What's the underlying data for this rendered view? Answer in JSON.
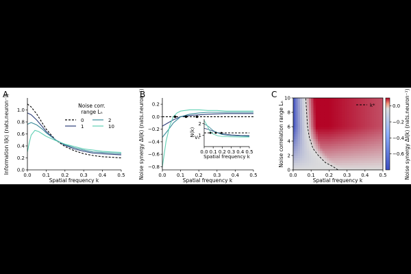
{
  "panels": {
    "A": {
      "letter": "A",
      "xlabel": "Spatial frequency k",
      "ylabel": "Information I(k) (nats.neuron⁻¹)",
      "xlim": [
        0,
        0.5
      ],
      "ylim": [
        0,
        1.2
      ],
      "xticks": [
        "0.0",
        "0.1",
        "0.2",
        "0.3",
        "0.4",
        "0.5"
      ],
      "yticks": [
        "0.0",
        "0.2",
        "0.4",
        "0.6",
        "0.8",
        "1.0"
      ],
      "legend_title_1": "Noise corr.",
      "legend_title_2": "range Lₙ",
      "legend_labels": [
        "0",
        "1",
        "2",
        "10"
      ]
    },
    "B": {
      "letter": "B",
      "xlabel": "Spatial frequency k",
      "ylabel": "Noise synergy ΔI(k) (nats.neuron⁻¹)",
      "xlim": [
        0,
        0.5
      ],
      "ylim": [
        -0.85,
        0.3
      ],
      "xticks": [
        "0.0",
        "0.1",
        "0.2",
        "0.3",
        "0.4",
        "0.5"
      ],
      "yticks": [
        "−0.8",
        "−0.6",
        "−0.4",
        "−0.2",
        "0.0",
        "0.2"
      ],
      "inset": {
        "xlabel": "Spatial frequency k",
        "ylabel": "N(k)",
        "xticks": [
          "0.0",
          "0.1",
          "0.2",
          "0.3",
          "0.4",
          "0.5"
        ],
        "yticks": [
          "1",
          "2"
        ],
        "vn_label": "Vₙ",
        "xlim": [
          0,
          0.5
        ],
        "ylim": [
          0,
          2.4
        ]
      }
    },
    "C": {
      "letter": "C",
      "xlabel": "Spatial frequency k",
      "ylabel": "Noise correlation range Lₙ",
      "xticks": [
        "0.0",
        "0.1",
        "0.2",
        "0.3",
        "0.4",
        "0.5"
      ],
      "yticks": [
        "0",
        "2",
        "4",
        "6",
        "8",
        "10"
      ],
      "legend_label": "k*",
      "cbar_label": "Noise synergy ΔI(k) (nats.neuron⁻¹)",
      "cbar_ticks": [
        "0.0",
        "−0.2",
        "−0.4",
        "−0.6"
      ],
      "cbar_range": [
        -0.8,
        0.1
      ]
    }
  },
  "colors": {
    "L0": "#000000",
    "L1": "#2c3e7a",
    "L2": "#3a8a9a",
    "L10": "#5fd0b4",
    "cmap_neg": "#3b4cc0",
    "cmap_mid": "#dddddd",
    "cmap_pos": "#b40426"
  },
  "chart_data": [
    {
      "type": "line",
      "panel": "A",
      "series": [
        {
          "name": "0",
          "x": [
            0,
            0.02,
            0.05,
            0.08,
            0.1,
            0.15,
            0.2,
            0.25,
            0.3,
            0.35,
            0.4,
            0.45,
            0.5
          ],
          "y": [
            1.1,
            1.05,
            0.93,
            0.78,
            0.68,
            0.5,
            0.39,
            0.32,
            0.27,
            0.24,
            0.22,
            0.21,
            0.2
          ]
        },
        {
          "name": "1",
          "x": [
            0,
            0.02,
            0.05,
            0.08,
            0.1,
            0.15,
            0.2,
            0.25,
            0.3,
            0.35,
            0.4,
            0.45,
            0.5
          ],
          "y": [
            0.95,
            0.92,
            0.83,
            0.72,
            0.64,
            0.5,
            0.41,
            0.35,
            0.31,
            0.28,
            0.27,
            0.26,
            0.25
          ]
        },
        {
          "name": "2",
          "x": [
            0,
            0.02,
            0.05,
            0.08,
            0.1,
            0.15,
            0.2,
            0.25,
            0.3,
            0.35,
            0.4,
            0.45,
            0.5
          ],
          "y": [
            0.76,
            0.79,
            0.75,
            0.68,
            0.62,
            0.5,
            0.42,
            0.37,
            0.33,
            0.3,
            0.29,
            0.28,
            0.27
          ]
        },
        {
          "name": "10",
          "x": [
            0,
            0.01,
            0.02,
            0.04,
            0.06,
            0.08,
            0.1,
            0.15,
            0.2,
            0.25,
            0.3,
            0.35,
            0.4,
            0.45,
            0.5
          ],
          "y": [
            0.3,
            0.45,
            0.58,
            0.66,
            0.64,
            0.6,
            0.56,
            0.49,
            0.43,
            0.39,
            0.35,
            0.33,
            0.31,
            0.3,
            0.29
          ]
        }
      ]
    },
    {
      "type": "line",
      "panel": "B",
      "series": [
        {
          "name": "0",
          "x": [
            0,
            0.5
          ],
          "y": [
            0,
            0
          ]
        },
        {
          "name": "1",
          "x": [
            0,
            0.03,
            0.06,
            0.1,
            0.15,
            0.2,
            0.25,
            0.3,
            0.35,
            0.4,
            0.45,
            0.5
          ],
          "y": [
            -0.15,
            -0.1,
            -0.05,
            0.0,
            0.02,
            0.03,
            0.04,
            0.045,
            0.05,
            0.05,
            0.05,
            0.05
          ]
        },
        {
          "name": "2",
          "x": [
            0,
            0.03,
            0.06,
            0.1,
            0.15,
            0.2,
            0.25,
            0.3,
            0.35,
            0.4,
            0.45,
            0.5
          ],
          "y": [
            -0.33,
            -0.22,
            -0.1,
            0.0,
            0.04,
            0.06,
            0.07,
            0.07,
            0.07,
            0.07,
            0.07,
            0.07
          ]
        },
        {
          "name": "10",
          "x": [
            0,
            0.01,
            0.02,
            0.04,
            0.06,
            0.08,
            0.1,
            0.15,
            0.2,
            0.25,
            0.3,
            0.35,
            0.4,
            0.45,
            0.5
          ],
          "y": [
            -0.8,
            -0.6,
            -0.4,
            -0.15,
            0.0,
            0.06,
            0.09,
            0.11,
            0.11,
            0.1,
            0.1,
            0.09,
            0.09,
            0.09,
            0.09
          ]
        }
      ],
      "markers_k": [
        0.07,
        0.13,
        0.19
      ]
    },
    {
      "type": "line",
      "panel": "B-inset",
      "series": [
        {
          "name": "0",
          "x": [
            0,
            0.5
          ],
          "y": [
            1.2,
            1.2
          ]
        },
        {
          "name": "1",
          "x": [
            0,
            0.05,
            0.1,
            0.15,
            0.2,
            0.3,
            0.4,
            0.5
          ],
          "y": [
            1.6,
            1.5,
            1.35,
            1.22,
            1.12,
            1.02,
            0.98,
            0.96
          ]
        },
        {
          "name": "2",
          "x": [
            0,
            0.05,
            0.1,
            0.15,
            0.2,
            0.3,
            0.4,
            0.5
          ],
          "y": [
            2.0,
            1.75,
            1.4,
            1.2,
            1.05,
            0.95,
            0.92,
            0.9
          ]
        },
        {
          "name": "10",
          "x": [
            0,
            0.03,
            0.06,
            0.1,
            0.15,
            0.2,
            0.3,
            0.4,
            0.5
          ],
          "y": [
            2.3,
            1.9,
            1.4,
            1.1,
            0.95,
            0.88,
            0.85,
            0.84,
            0.84
          ]
        }
      ]
    },
    {
      "type": "heatmap",
      "panel": "C",
      "xlim": [
        0,
        0.5
      ],
      "ylim": [
        0,
        10
      ],
      "vmin": -0.8,
      "vmax": 0.1,
      "kstar_curve": {
        "k": [
          0.25,
          0.22,
          0.18,
          0.14,
          0.11,
          0.09,
          0.08,
          0.075,
          0.07
        ],
        "L": [
          0,
          0.5,
          1,
          2,
          3,
          4.5,
          6,
          8,
          10
        ]
      }
    }
  ]
}
